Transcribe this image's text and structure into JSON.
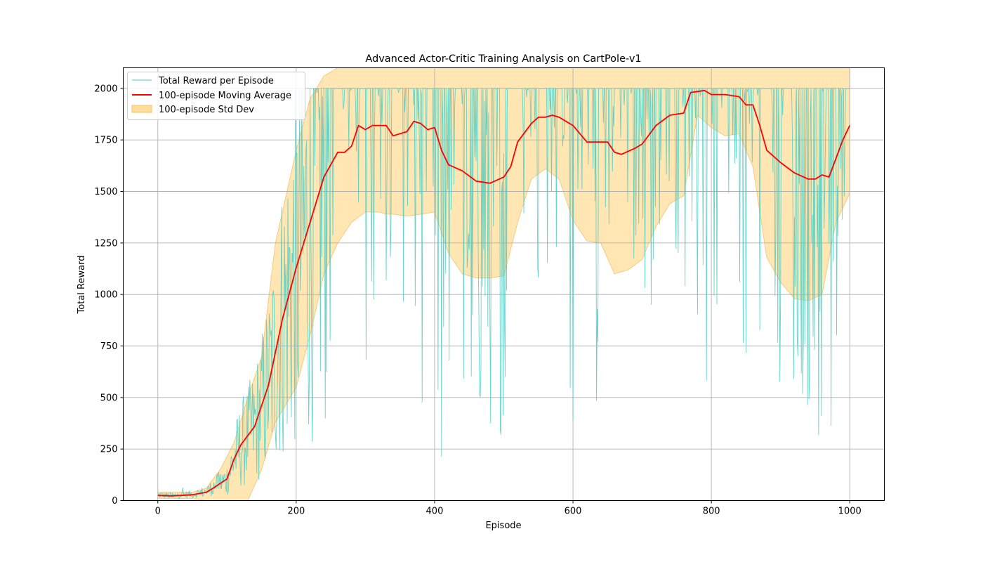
{
  "chart_data": {
    "type": "line",
    "title": "Advanced Actor-Critic Training Analysis on CartPole-v1",
    "xlabel": "Episode",
    "ylabel": "Total Reward",
    "xlim": [
      -50,
      1050
    ],
    "ylim": [
      0,
      2100
    ],
    "xticks": [
      0,
      200,
      400,
      600,
      800,
      1000
    ],
    "yticks": [
      0,
      250,
      500,
      750,
      1000,
      1250,
      1500,
      1750,
      2000
    ],
    "grid": true,
    "legend_position": "upper-left",
    "legend": [
      "Total Reward per Episode",
      "100-episode Moving Average",
      "100-episode Std Dev"
    ],
    "colors": {
      "raw": "#4ecdc4",
      "ma": "#ff0000",
      "band": "#ffdd99",
      "band_edge": "#f5c26b",
      "grid": "#b0b0b0"
    },
    "series": [
      {
        "name": "100-episode Moving Average",
        "x": [
          0,
          20,
          50,
          70,
          80,
          100,
          110,
          120,
          140,
          160,
          180,
          200,
          220,
          240,
          260,
          270,
          280,
          290,
          300,
          310,
          330,
          340,
          360,
          370,
          380,
          390,
          400,
          410,
          420,
          440,
          460,
          480,
          500,
          510,
          520,
          540,
          550,
          560,
          570,
          580,
          590,
          600,
          620,
          640,
          650,
          660,
          670,
          690,
          700,
          720,
          740,
          760,
          770,
          790,
          800,
          820,
          840,
          850,
          860,
          870,
          880,
          900,
          920,
          940,
          950,
          960,
          970,
          990,
          1000
        ],
        "y": [
          25,
          22,
          28,
          40,
          60,
          105,
          200,
          270,
          360,
          560,
          880,
          1130,
          1350,
          1570,
          1690,
          1690,
          1720,
          1820,
          1800,
          1820,
          1820,
          1770,
          1790,
          1840,
          1830,
          1800,
          1810,
          1700,
          1630,
          1600,
          1550,
          1540,
          1570,
          1620,
          1740,
          1830,
          1860,
          1860,
          1870,
          1860,
          1840,
          1820,
          1740,
          1740,
          1740,
          1690,
          1680,
          1710,
          1730,
          1820,
          1870,
          1880,
          1980,
          1990,
          1970,
          1970,
          1960,
          1920,
          1920,
          1820,
          1700,
          1640,
          1590,
          1560,
          1560,
          1580,
          1570,
          1750,
          1820
        ]
      },
      {
        "name": "100-episode Std Dev",
        "x": [
          0,
          30,
          50,
          70,
          90,
          110,
          130,
          150,
          170,
          200,
          220,
          240,
          260,
          280,
          300,
          320,
          330,
          340,
          360,
          380,
          400,
          420,
          440,
          460,
          480,
          500,
          520,
          540,
          560,
          580,
          600,
          620,
          640,
          660,
          680,
          700,
          720,
          740,
          760,
          780,
          800,
          820,
          840,
          860,
          880,
          900,
          920,
          940,
          960,
          980,
          1000
        ],
        "lower": [
          10,
          10,
          10,
          0,
          0,
          0,
          0,
          150,
          380,
          550,
          800,
          1100,
          1250,
          1350,
          1400,
          1400,
          1390,
          1390,
          1380,
          1390,
          1400,
          1200,
          1100,
          1080,
          1080,
          1090,
          1350,
          1560,
          1610,
          1560,
          1360,
          1260,
          1250,
          1100,
          1120,
          1170,
          1330,
          1440,
          1480,
          1870,
          1810,
          1770,
          1780,
          1620,
          1180,
          1060,
          980,
          970,
          1000,
          1350,
          1490
        ],
        "upper": [
          40,
          40,
          40,
          60,
          150,
          280,
          500,
          700,
          1250,
          1700,
          1950,
          2060,
          2100,
          2100,
          2100,
          2100,
          2100,
          2100,
          2100,
          2100,
          2100,
          2100,
          2100,
          2100,
          2100,
          2100,
          2100,
          2100,
          2100,
          2100,
          2100,
          2100,
          2100,
          2100,
          2100,
          2100,
          2100,
          2100,
          2100,
          2100,
          2100,
          2100,
          2100,
          2100,
          2100,
          2100,
          2100,
          2100,
          2100,
          2100,
          2100
        ]
      }
    ]
  }
}
